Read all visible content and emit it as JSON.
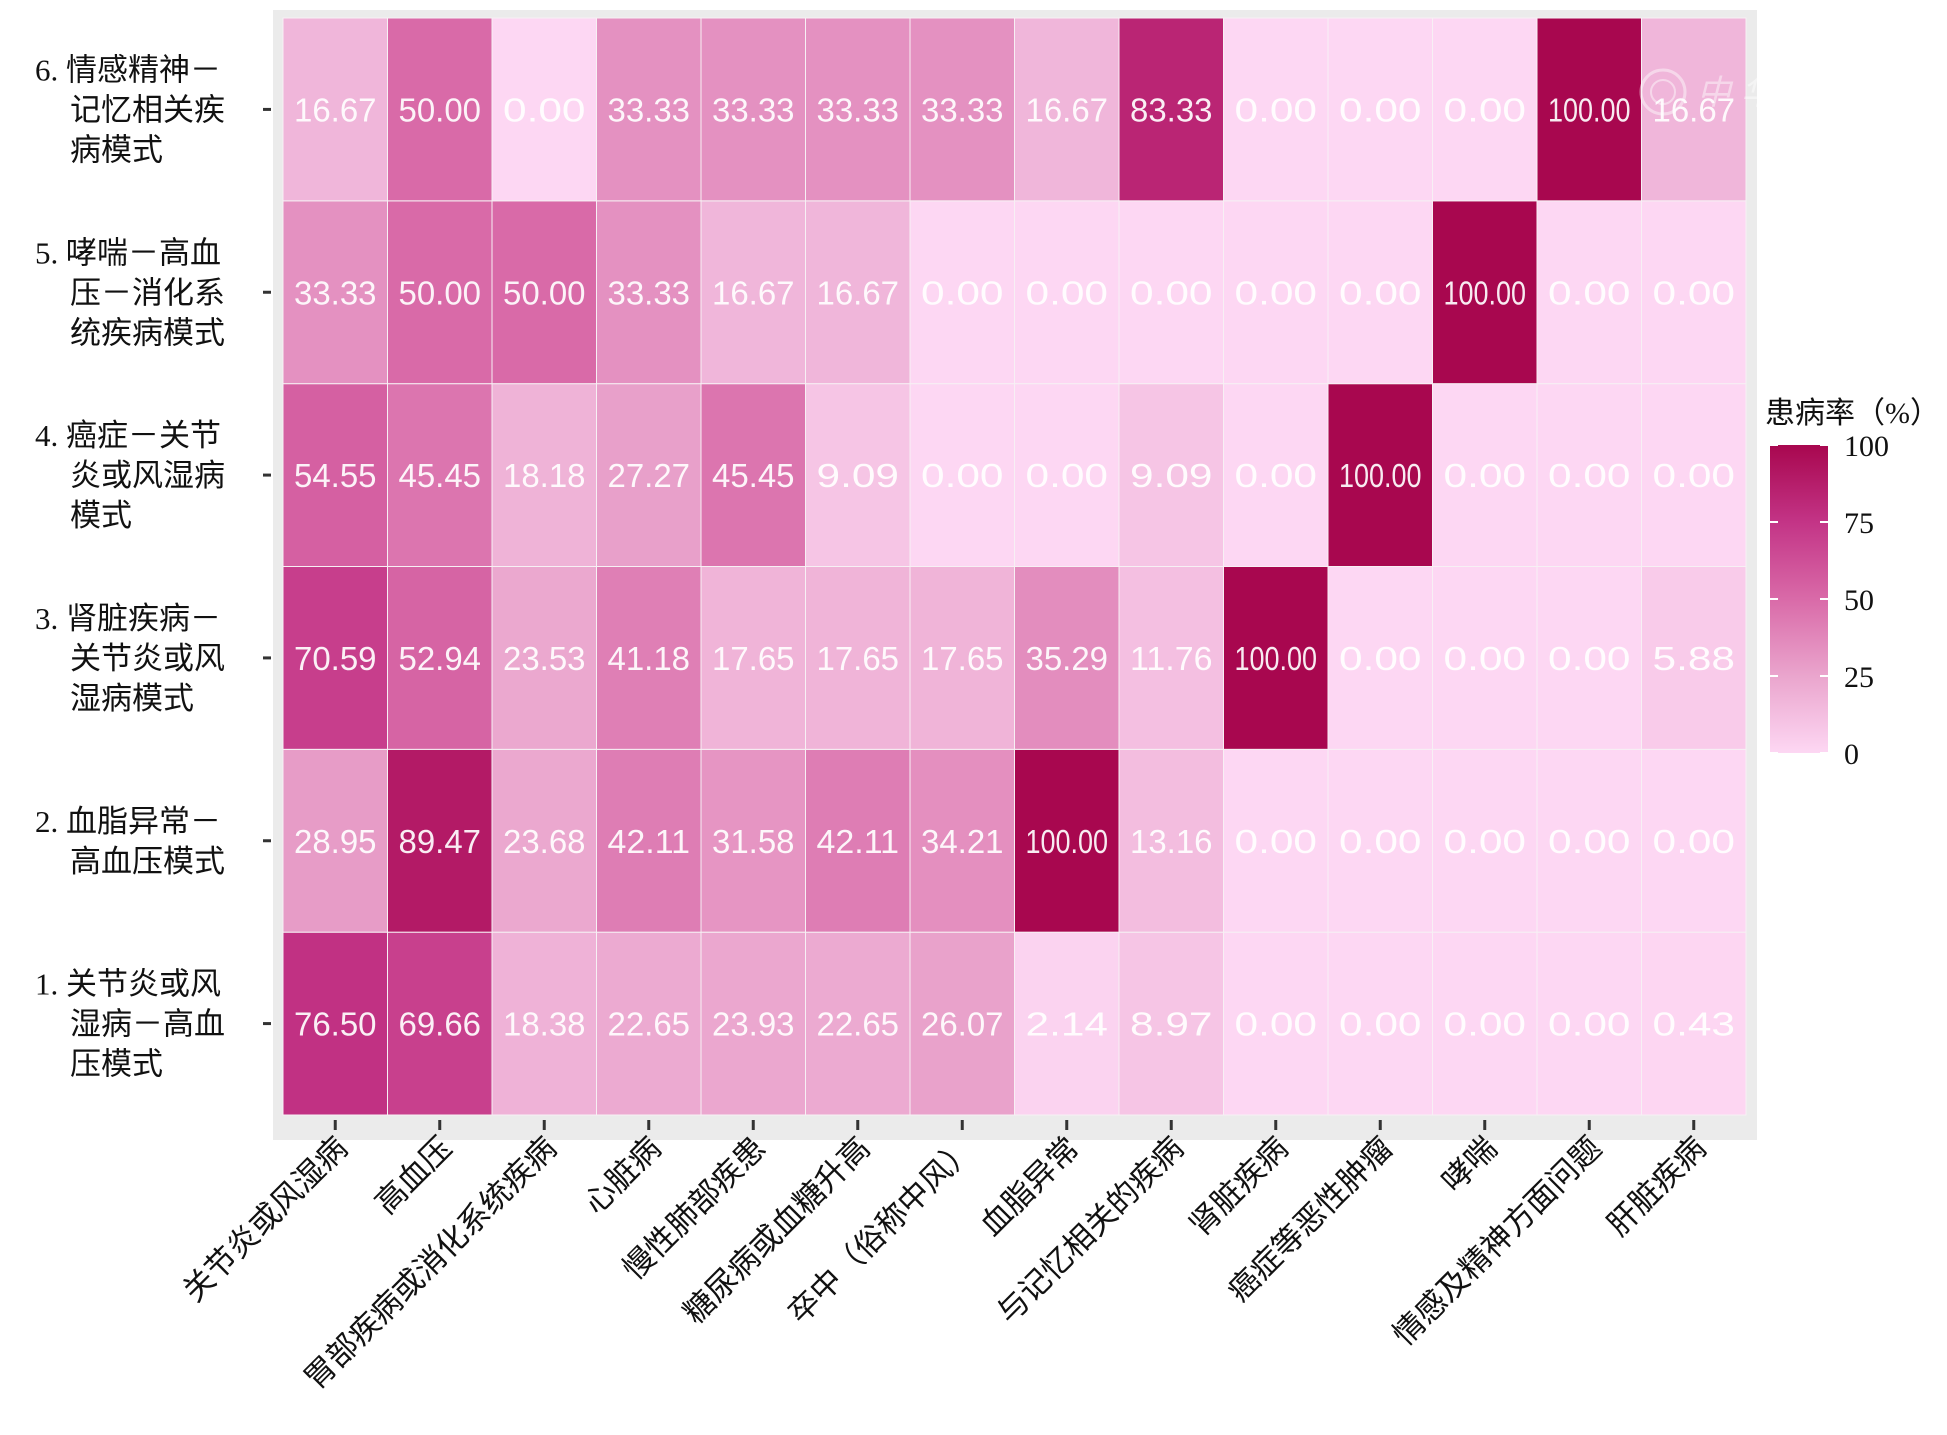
{
  "chart_data": {
    "type": "heatmap",
    "rows": [
      "1. 关节炎或风湿病－高血压模式",
      "2. 血脂异常－高血压模式",
      "3. 肾脏疾病－关节炎或风湿病模式",
      "4. 癌症－关节炎或风湿病模式",
      "5. 哮喘－高血压－消化系统疾病模式",
      "6. 情感精神－记忆相关疾病模式"
    ],
    "row_label_lines": [
      [
        "1. 关节炎或风",
        "湿病－高血",
        "压模式"
      ],
      [
        "2. 血脂异常－",
        "高血压模式"
      ],
      [
        "3. 肾脏疾病－",
        "关节炎或风",
        "湿病模式"
      ],
      [
        "4. 癌症－关节",
        "炎或风湿病",
        "模式"
      ],
      [
        "5. 哮喘－高血",
        "压－消化系",
        "统疾病模式"
      ],
      [
        "6. 情感精神－",
        "记忆相关疾",
        "病模式"
      ]
    ],
    "columns": [
      "关节炎或风湿病",
      "高血压",
      "胃部疾病或消化系统疾病",
      "心脏病",
      "慢性肺部疾患",
      "糖尿病或血糖升高",
      "卒中（俗称中风）",
      "血脂异常",
      "与记忆相关的疾病",
      "肾脏疾病",
      "癌症等恶性肿瘤",
      "哮喘",
      "情感及精神方面问题",
      "肝脏疾病"
    ],
    "values": [
      [
        76.5,
        69.66,
        18.38,
        22.65,
        23.93,
        22.65,
        26.07,
        2.14,
        8.97,
        0.0,
        0.0,
        0.0,
        0.0,
        0.43
      ],
      [
        28.95,
        89.47,
        23.68,
        42.11,
        31.58,
        42.11,
        34.21,
        100.0,
        13.16,
        0.0,
        0.0,
        0.0,
        0.0,
        0.0
      ],
      [
        70.59,
        52.94,
        23.53,
        41.18,
        17.65,
        17.65,
        17.65,
        35.29,
        11.76,
        100.0,
        0.0,
        0.0,
        0.0,
        5.88
      ],
      [
        54.55,
        45.45,
        18.18,
        27.27,
        45.45,
        9.09,
        0.0,
        0.0,
        9.09,
        0.0,
        100.0,
        0.0,
        0.0,
        0.0
      ],
      [
        33.33,
        50.0,
        50.0,
        33.33,
        16.67,
        16.67,
        0.0,
        0.0,
        0.0,
        0.0,
        0.0,
        100.0,
        0.0,
        0.0
      ],
      [
        16.67,
        50.0,
        0.0,
        33.33,
        33.33,
        33.33,
        33.33,
        16.67,
        83.33,
        0.0,
        0.0,
        0.0,
        100.0,
        16.67
      ]
    ],
    "legend": {
      "title": "患病率（%）",
      "ticks": [
        100,
        75,
        50,
        25,
        0
      ],
      "min": 0,
      "max": 100,
      "placement": "right"
    },
    "color_low": "#fdd7f3",
    "color_high": "#a8074f",
    "grid": true,
    "watermark": "中华医学会"
  }
}
